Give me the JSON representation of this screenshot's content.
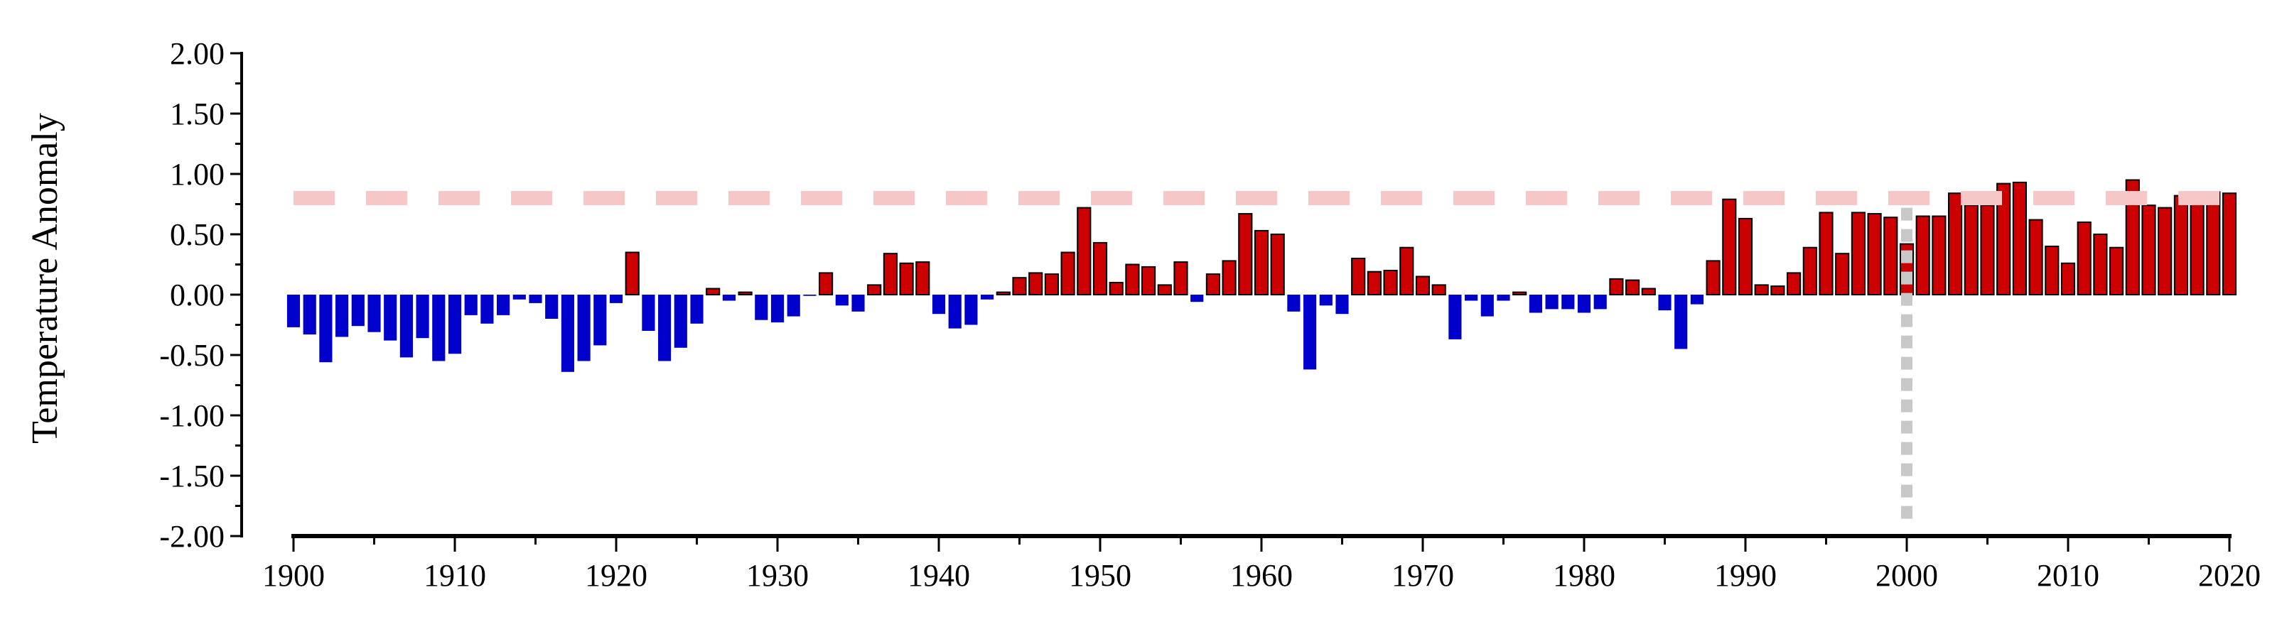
{
  "chart_data": {
    "type": "bar",
    "title": "",
    "xlabel": "",
    "ylabel": "Temperature Anomaly",
    "ylim": [
      -2.0,
      2.0
    ],
    "xlim": [
      1899.5,
      2020.5
    ],
    "y_ticks": [
      "2.00",
      "1.50",
      "1.00",
      "0.50",
      "0.00",
      "-0.50",
      "-1.00",
      "-1.50",
      "-2.00"
    ],
    "x_ticks": [
      "1900",
      "1910",
      "1920",
      "1930",
      "1940",
      "1950",
      "1960",
      "1970",
      "1980",
      "1990",
      "2000",
      "2010",
      "2020"
    ],
    "grid": false,
    "legend": "none",
    "colors": {
      "positive": "#cc0000",
      "negative": "#0000cc",
      "reference_line": "#f7c6c6",
      "marker_line": "#c8c8c8"
    },
    "reference_line_y": 0.8,
    "marker_line_x": 2000,
    "x": [
      1900,
      1901,
      1902,
      1903,
      1904,
      1905,
      1906,
      1907,
      1908,
      1909,
      1910,
      1911,
      1912,
      1913,
      1914,
      1915,
      1916,
      1917,
      1918,
      1919,
      1920,
      1921,
      1922,
      1923,
      1924,
      1925,
      1926,
      1927,
      1928,
      1929,
      1930,
      1931,
      1932,
      1933,
      1934,
      1935,
      1936,
      1937,
      1938,
      1939,
      1940,
      1941,
      1942,
      1943,
      1944,
      1945,
      1946,
      1947,
      1948,
      1949,
      1950,
      1951,
      1952,
      1953,
      1954,
      1955,
      1956,
      1957,
      1958,
      1959,
      1960,
      1961,
      1962,
      1963,
      1964,
      1965,
      1966,
      1967,
      1968,
      1969,
      1970,
      1971,
      1972,
      1973,
      1974,
      1975,
      1976,
      1977,
      1978,
      1979,
      1980,
      1981,
      1982,
      1983,
      1984,
      1985,
      1986,
      1987,
      1988,
      1989,
      1990,
      1991,
      1992,
      1993,
      1994,
      1995,
      1996,
      1997,
      1998,
      1999,
      2000,
      2001,
      2002,
      2003,
      2004,
      2005,
      2006,
      2007,
      2008,
      2009,
      2010,
      2011,
      2012,
      2013,
      2014,
      2015,
      2016,
      2017,
      2018,
      2019,
      2020
    ],
    "values": [
      -0.27,
      -0.33,
      -0.56,
      -0.35,
      -0.26,
      -0.31,
      -0.38,
      -0.52,
      -0.36,
      -0.55,
      -0.49,
      -0.17,
      -0.24,
      -0.17,
      -0.04,
      -0.07,
      -0.2,
      -0.64,
      -0.55,
      -0.42,
      -0.07,
      0.35,
      -0.3,
      -0.55,
      -0.44,
      -0.24,
      0.05,
      -0.05,
      0.02,
      -0.21,
      -0.23,
      -0.18,
      -0.01,
      0.18,
      -0.09,
      -0.14,
      0.08,
      0.34,
      0.26,
      0.27,
      -0.16,
      -0.28,
      -0.25,
      -0.04,
      0.02,
      0.14,
      0.18,
      0.17,
      0.35,
      0.72,
      0.43,
      0.1,
      0.25,
      0.23,
      0.08,
      0.27,
      -0.06,
      0.17,
      0.28,
      0.67,
      0.53,
      0.5,
      -0.14,
      -0.62,
      -0.09,
      -0.16,
      0.3,
      0.19,
      0.2,
      0.39,
      0.15,
      0.08,
      -0.37,
      -0.05,
      -0.18,
      -0.05,
      0.02,
      -0.15,
      -0.12,
      -0.12,
      -0.15,
      -0.12,
      0.13,
      0.12,
      0.05,
      -0.13,
      -0.45,
      -0.08,
      0.28,
      0.79,
      0.63,
      0.08,
      0.07,
      0.18,
      0.39,
      0.68,
      0.34,
      0.68,
      0.67,
      0.64,
      0.42,
      0.65,
      0.65,
      0.84,
      0.74,
      0.74,
      0.92,
      0.93,
      0.62,
      0.4,
      0.26,
      0.6,
      0.5,
      0.39,
      0.95,
      0.74,
      0.72,
      0.82,
      0.81,
      0.85,
      0.84
    ]
  }
}
